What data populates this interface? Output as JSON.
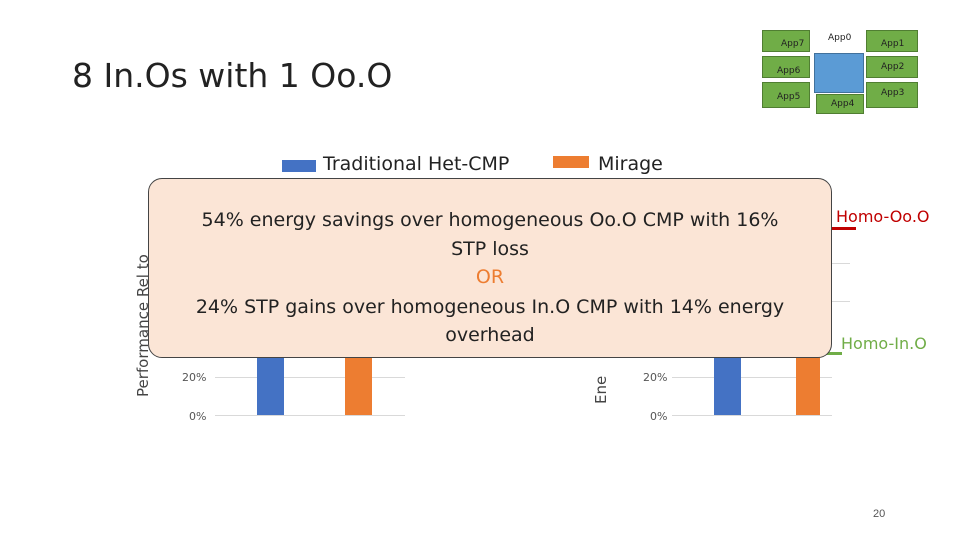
{
  "slide": {
    "title": "8 In.Os with 1 Oo.O",
    "page_number": "20"
  },
  "diagram": {
    "apps": [
      "App7",
      "App0",
      "App1",
      "App6",
      "App2",
      "App5",
      "App4",
      "App3"
    ],
    "colors": {
      "green": "#70AD47",
      "blue": "#5B9BD5"
    }
  },
  "legend": {
    "items": [
      {
        "label": "Traditional Het-CMP",
        "color": "#4472C4"
      },
      {
        "label": "Mirage",
        "color": "#ED7D31"
      }
    ]
  },
  "charts": {
    "left": {
      "ylabel": "Performance Rel to",
      "ticks": [
        "20%",
        "0%"
      ]
    },
    "right": {
      "ylabel": "Ene",
      "ticks": [
        "20%",
        "0%"
      ],
      "ref_lines": [
        {
          "label": "Homo-Oo.O",
          "color": "#C00000"
        },
        {
          "label": "Homo-In.O",
          "color": "#70AD47"
        }
      ]
    }
  },
  "callout": {
    "line1": "54% energy savings over homogeneous Oo.O CMP with 16%",
    "line2": "STP loss",
    "or": "OR",
    "line3": "24% STP gains over homogeneous In.O CMP with 14% energy",
    "line4": "overhead"
  }
}
